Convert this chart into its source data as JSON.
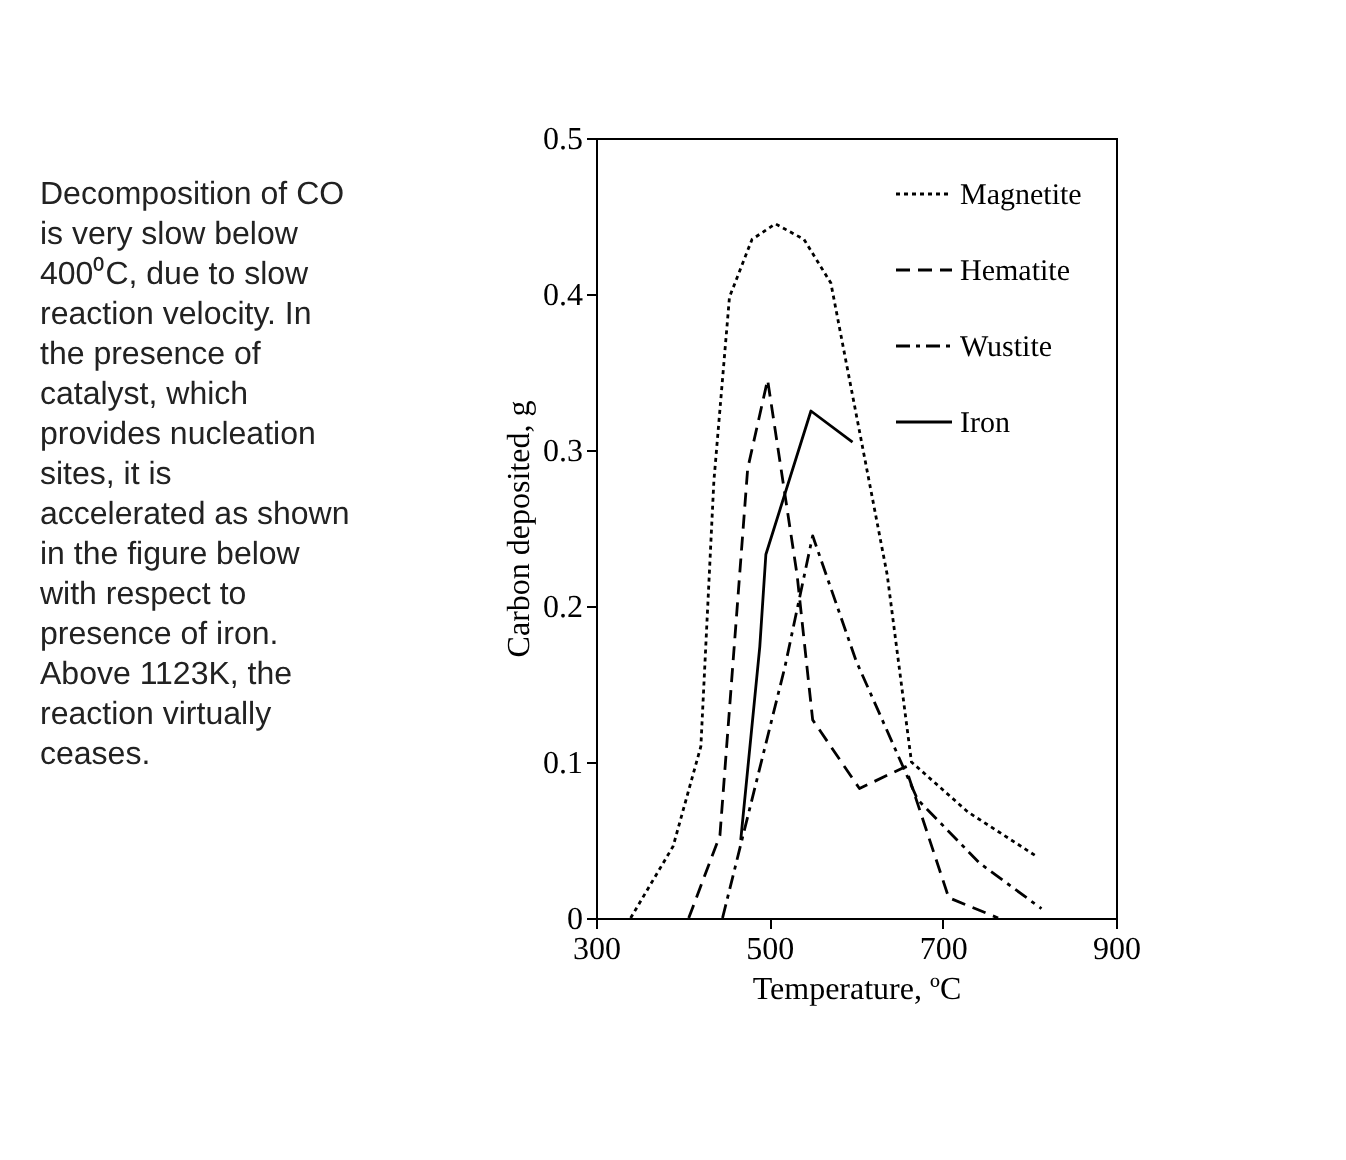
{
  "chart_data": {
    "type": "line",
    "xlabel": "Temperature, ºC",
    "ylabel": "Carbon deposited, g",
    "xlim": [
      300,
      900
    ],
    "xticks": [
      300,
      500,
      700,
      900
    ],
    "ylim": [
      0,
      0.5
    ],
    "yticks": [
      0,
      0.1,
      0.2,
      0.3,
      0.4,
      0.5
    ],
    "grid": false,
    "legend": "top right",
    "marker": "none",
    "annotations": [
      "Decomposition of CO is very slow below 400⁰C, due to slow reaction velocity. In the presence of catalyst, which provides nucleation sites, it is accelerated as shown in the figure below with respect to presence of iron. Above 1123K, the reaction virtually ceases."
    ],
    "series": [
      {
        "name": "Magnetite",
        "color": "#000000",
        "line_style": "dotted",
        "x": [
          340,
          389,
          421,
          436,
          454,
          480,
          507,
          540,
          571,
          636,
          664,
          729,
          807
        ],
        "values": [
          0,
          0.046,
          0.11,
          0.28,
          0.398,
          0.435,
          0.445,
          0.435,
          0.407,
          0.22,
          0.1,
          0.068,
          0.04
        ]
      },
      {
        "name": "Hematite",
        "color": "#000000",
        "line_style": "dashed",
        "x": [
          407,
          443,
          475,
          498,
          532,
          550,
          604,
          657,
          707,
          764
        ],
        "values": [
          0,
          0.053,
          0.288,
          0.345,
          0.22,
          0.127,
          0.083,
          0.097,
          0.013,
          0
        ]
      },
      {
        "name": "Wustite",
        "color": "#000000",
        "line_style": "dashdot",
        "x": [
          446,
          518,
          550,
          600,
          671,
          743,
          814
        ],
        "values": [
          0,
          0.161,
          0.245,
          0.165,
          0.076,
          0.035,
          0.006
        ]
      },
      {
        "name": "Iron",
        "color": "#000000",
        "line_style": "solid",
        "x": [
          467,
          489,
          496,
          548,
          596
        ],
        "values": [
          0.05,
          0.174,
          0.233,
          0.325,
          0.305
        ]
      }
    ]
  }
}
